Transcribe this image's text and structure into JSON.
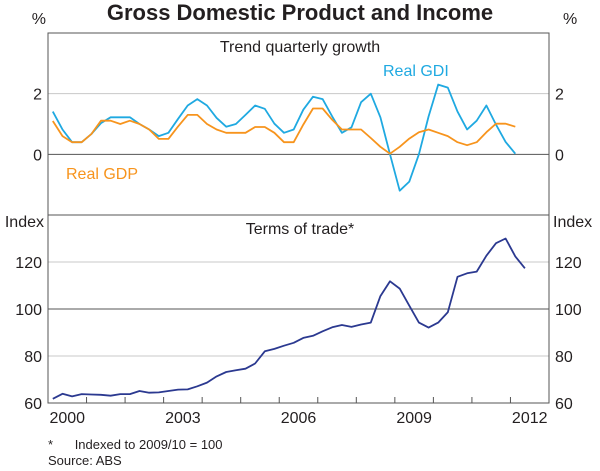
{
  "chart_data": [
    {
      "type": "line",
      "title": "Gross Domestic Product and Income",
      "panel_title": "Trend quarterly growth",
      "ylabel_left": "%",
      "ylabel_right": "%",
      "ylim": [
        -2,
        4
      ],
      "yticks": [
        0,
        2
      ],
      "start_quarter": "2000-Q1",
      "series": [
        {
          "name": "Real GDI",
          "color": "#1fa9e1",
          "values": [
            1.41,
            0.82,
            0.4,
            0.4,
            0.67,
            1.03,
            1.22,
            1.22,
            1.22,
            1.0,
            0.82,
            0.6,
            0.71,
            1.17,
            1.61,
            1.82,
            1.61,
            1.2,
            0.91,
            1.0,
            1.3,
            1.61,
            1.5,
            1.01,
            0.71,
            0.82,
            1.47,
            1.9,
            1.82,
            1.25,
            0.71,
            0.89,
            1.72,
            2.0,
            1.22,
            0.0,
            -1.2,
            -0.9,
            0.0,
            1.25,
            2.3,
            2.2,
            1.41,
            0.82,
            1.11,
            1.61,
            0.98,
            0.41,
            0.02
          ]
        },
        {
          "name": "Real GDP",
          "color": "#f7941d",
          "values": [
            1.1,
            0.6,
            0.4,
            0.4,
            0.67,
            1.11,
            1.11,
            1.0,
            1.11,
            1.0,
            0.82,
            0.51,
            0.51,
            0.92,
            1.3,
            1.3,
            1.0,
            0.82,
            0.71,
            0.71,
            0.71,
            0.9,
            0.9,
            0.71,
            0.4,
            0.4,
            0.98,
            1.51,
            1.51,
            1.14,
            0.82,
            0.82,
            0.82,
            0.54,
            0.25,
            0.02,
            0.25,
            0.52,
            0.73,
            0.82,
            0.71,
            0.6,
            0.4,
            0.3,
            0.4,
            0.73,
            1.01,
            1.01,
            0.91
          ]
        }
      ]
    },
    {
      "type": "line",
      "panel_title": "Terms of trade*",
      "ylabel_left": "Index",
      "ylabel_right": "Index",
      "ylim": [
        60,
        140
      ],
      "yticks": [
        60,
        80,
        100,
        120
      ],
      "start_quarter": "2000-Q1",
      "xlim": [
        2000,
        2013
      ],
      "xtick_labels": [
        "2000",
        "2003",
        "2006",
        "2009",
        "2012"
      ],
      "series": [
        {
          "name": "Terms of trade",
          "color": "#2b3990",
          "values": [
            61.8,
            63.9,
            62.8,
            63.8,
            63.6,
            63.5,
            63.1,
            63.8,
            63.8,
            65.1,
            64.4,
            64.5,
            65.1,
            65.7,
            65.8,
            67.1,
            68.7,
            71.3,
            73.2,
            73.9,
            74.6,
            76.8,
            82.0,
            83.0,
            84.4,
            85.6,
            87.7,
            88.6,
            90.5,
            92.2,
            93.2,
            92.4,
            93.4,
            94.2,
            105.5,
            111.8,
            108.7,
            101.4,
            94.2,
            92.1,
            94.2,
            98.6,
            113.7,
            115.2,
            115.9,
            122.7,
            128.0,
            130.0,
            122.4,
            117.3
          ]
        }
      ]
    }
  ],
  "footnotes": {
    "star": "*",
    "note": "Indexed to 2009/10 = 100",
    "source": "Source: ABS"
  }
}
